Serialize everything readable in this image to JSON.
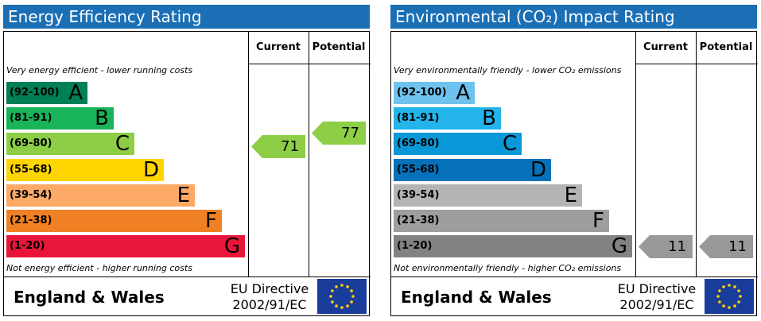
{
  "chart_data": [
    {
      "type": "bar",
      "title": "Energy Efficiency Rating",
      "columns": [
        "Current",
        "Potential"
      ],
      "top_note": "Very energy efficient - lower running costs",
      "bottom_note": "Not energy efficient - higher running costs",
      "bands": [
        {
          "range": "(92-100)",
          "letter": "A",
          "color": "#008054"
        },
        {
          "range": "(81-91)",
          "letter": "B",
          "color": "#19b459"
        },
        {
          "range": "(69-80)",
          "letter": "C",
          "color": "#8dce46"
        },
        {
          "range": "(55-68)",
          "letter": "D",
          "color": "#ffd500"
        },
        {
          "range": "(39-54)",
          "letter": "E",
          "color": "#fcaa65"
        },
        {
          "range": "(21-38)",
          "letter": "F",
          "color": "#ef8023"
        },
        {
          "range": "(1-20)",
          "letter": "G",
          "color": "#e9153b"
        }
      ],
      "current": {
        "value": "71",
        "band": "C",
        "color": "#8dce46"
      },
      "potential": {
        "value": "77",
        "band": "C",
        "color": "#8dce46"
      },
      "footer": {
        "region": "England & Wales",
        "directive_line1": "EU Directive",
        "directive_line2": "2002/91/EC"
      }
    },
    {
      "type": "bar",
      "title": "Environmental (CO₂) Impact Rating",
      "columns": [
        "Current",
        "Potential"
      ],
      "top_note": "Very environmentally friendly - lower CO₂ emissions",
      "bottom_note": "Not environmentally friendly - higher CO₂ emissions",
      "bands": [
        {
          "range": "(92-100)",
          "letter": "A",
          "color": "#6dc2ee"
        },
        {
          "range": "(81-91)",
          "letter": "B",
          "color": "#22b4ea"
        },
        {
          "range": "(69-80)",
          "letter": "C",
          "color": "#0a97d8"
        },
        {
          "range": "(55-68)",
          "letter": "D",
          "color": "#0671bb"
        },
        {
          "range": "(39-54)",
          "letter": "E",
          "color": "#b2b4b6"
        },
        {
          "range": "(21-38)",
          "letter": "F",
          "color": "#9c9ea0"
        },
        {
          "range": "(1-20)",
          "letter": "G",
          "color": "#808284"
        }
      ],
      "current": {
        "value": "11",
        "band": "G",
        "color": "#999999"
      },
      "potential": {
        "value": "11",
        "band": "G",
        "color": "#999999"
      },
      "footer": {
        "region": "England & Wales",
        "directive_line1": "EU Directive",
        "directive_line2": "2002/91/EC"
      }
    }
  ]
}
